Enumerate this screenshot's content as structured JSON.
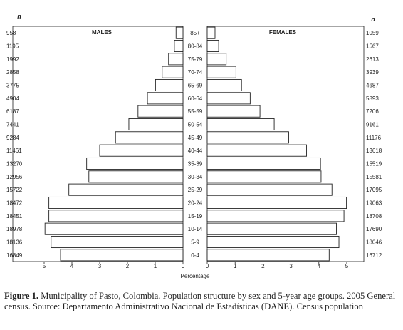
{
  "chart_data": {
    "type": "bar",
    "subtype": "population-pyramid",
    "left_count_header": "n",
    "right_count_header": "n",
    "age_groups": [
      "85+",
      "80-84",
      "75-79",
      "70-74",
      "65-69",
      "60-64",
      "55-59",
      "50-54",
      "45-49",
      "40-44",
      "35-39",
      "30-34",
      "25-29",
      "20-24",
      "15-19",
      "10-14",
      "5-9",
      "0-4"
    ],
    "series": [
      {
        "name": "MALES",
        "counts": [
          "958",
          "1195",
          "1992",
          "2858",
          "3775",
          "4904",
          "6187",
          "7441",
          "9284",
          "11461",
          "13270",
          "12956",
          "15722",
          "18472",
          "18451",
          "18978",
          "18136",
          "16849"
        ],
        "values": [
          0.25,
          0.31,
          0.52,
          0.75,
          0.99,
          1.28,
          1.62,
          1.95,
          2.43,
          3.0,
          3.47,
          3.39,
          4.11,
          4.83,
          4.83,
          4.97,
          4.75,
          4.41
        ]
      },
      {
        "name": "FEMALES",
        "counts": [
          "1059",
          "1567",
          "2613",
          "3939",
          "4687",
          "5893",
          "7206",
          "9161",
          "11176",
          "13618",
          "15519",
          "15581",
          "17095",
          "19063",
          "18708",
          "17690",
          "18046",
          "16712"
        ],
        "values": [
          0.28,
          0.41,
          0.68,
          1.03,
          1.23,
          1.54,
          1.89,
          2.4,
          2.92,
          3.56,
          4.06,
          4.08,
          4.47,
          4.99,
          4.9,
          4.63,
          4.72,
          4.37
        ]
      }
    ],
    "xlabel": "Percentage",
    "xlim": [
      0,
      5
    ],
    "left_ticks": [
      "5",
      "4",
      "3",
      "2",
      "1",
      "0"
    ],
    "right_ticks": [
      "0",
      "1",
      "2",
      "3",
      "4",
      "5"
    ],
    "grid": false,
    "bar_fill": "#ffffff",
    "bar_stroke": "#222222"
  },
  "caption": {
    "label": "Figure 1.",
    "text": " Municipality of Pasto, Colombia. Population structure by sex and 5-year age groups. 2005 General census. Source: Departamento Administrativo Nacional de Estadísticas (DANE). Census population"
  }
}
